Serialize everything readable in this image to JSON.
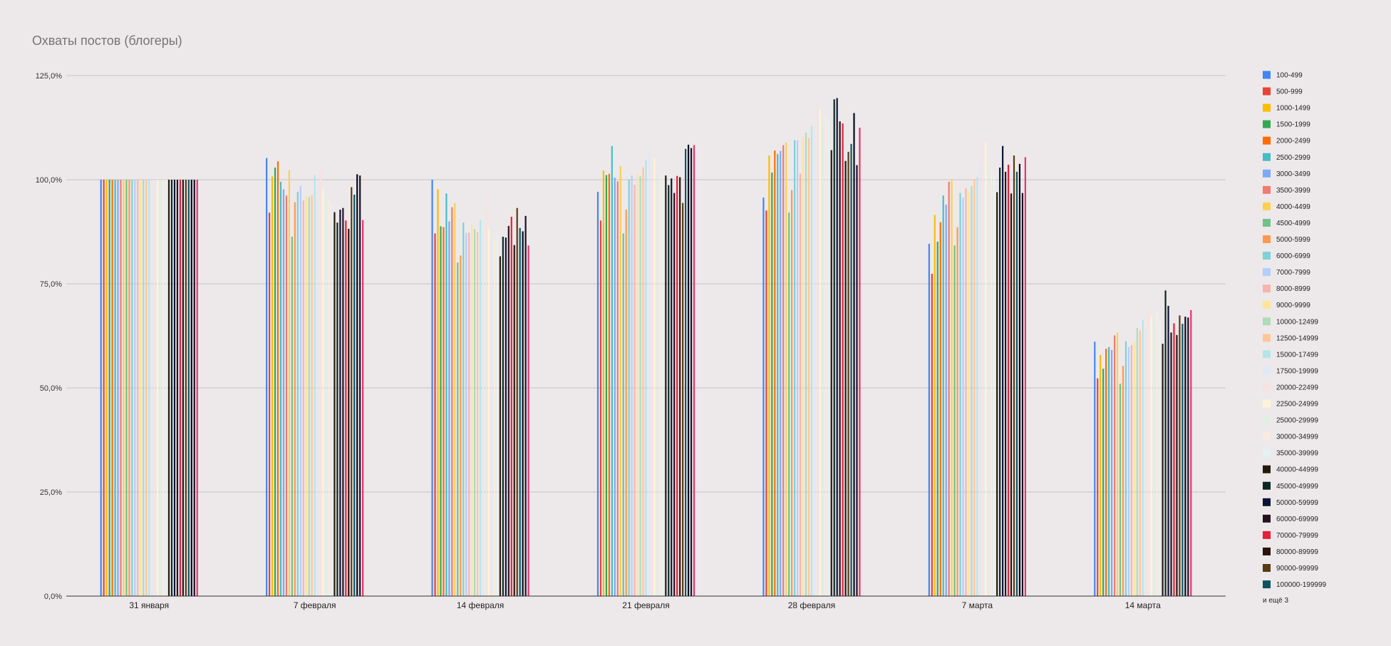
{
  "chart_data": {
    "type": "bar",
    "title": "Охваты постов (блогеры)",
    "xlabel": "",
    "ylabel": "",
    "ylim": [
      0,
      125
    ],
    "y_ticks": [
      "0,0%",
      "25,0%",
      "50,0%",
      "75,0%",
      "100,0%",
      "125,0%"
    ],
    "y_tick_values": [
      0,
      25,
      50,
      75,
      100,
      125
    ],
    "grid": true,
    "legend_position": "right",
    "legend_more": "и ещё 3",
    "categories": [
      "31 января",
      "7 февраля",
      "14 февраля",
      "21 февраля",
      "28 февраля",
      "7 марта",
      "14 марта"
    ],
    "series": [
      {
        "name": "100-499",
        "color": "#4285f4",
        "values": [
          100,
          105.2,
          100,
          97.1,
          95.7,
          84.6,
          61.1
        ]
      },
      {
        "name": "500-999",
        "color": "#ea4335",
        "values": [
          100,
          92.1,
          87.1,
          90.2,
          92.6,
          77.4,
          52.3
        ]
      },
      {
        "name": "1000-1499",
        "color": "#fbbc04",
        "values": [
          100,
          100.8,
          97.7,
          102.2,
          105.8,
          91.5,
          57.9
        ]
      },
      {
        "name": "1500-1999",
        "color": "#34a853",
        "values": [
          100,
          102.9,
          88.8,
          101.1,
          101.7,
          85.1,
          54.6
        ]
      },
      {
        "name": "2000-2499",
        "color": "#ff6d01",
        "values": [
          100,
          104.4,
          88.6,
          101.4,
          107.0,
          89.8,
          59.4
        ]
      },
      {
        "name": "2500-2999",
        "color": "#46bdc6",
        "values": [
          100,
          99.5,
          96.7,
          108.1,
          106.2,
          96.2,
          59.8
        ]
      },
      {
        "name": "3000-3499",
        "color": "#7baaf7",
        "values": [
          100,
          97.7,
          90.0,
          100.5,
          106.9,
          94.0,
          59.1
        ]
      },
      {
        "name": "3500-3999",
        "color": "#f07b72",
        "values": [
          100,
          96.2,
          93.4,
          99.6,
          108.3,
          99.5,
          62.6
        ]
      },
      {
        "name": "4000-4499",
        "color": "#fcd04f",
        "values": [
          100,
          102.3,
          94.4,
          103.3,
          108.9,
          100.0,
          63.3
        ]
      },
      {
        "name": "4500-4999",
        "color": "#71c287",
        "values": [
          100,
          86.3,
          80.1,
          87.1,
          92.1,
          84.2,
          51.0
        ]
      },
      {
        "name": "5000-5999",
        "color": "#ff994d",
        "values": [
          100,
          94.6,
          81.8,
          92.8,
          97.5,
          88.6,
          55.3
        ]
      },
      {
        "name": "6000-6999",
        "color": "#7ed1d7",
        "values": [
          100,
          97.1,
          89.7,
          100.0,
          109.5,
          96.8,
          61.2
        ]
      },
      {
        "name": "7000-7999",
        "color": "#b3cefb",
        "values": [
          100,
          98.5,
          87.2,
          101.0,
          109.4,
          95.7,
          59.8
        ]
      },
      {
        "name": "8000-8999",
        "color": "#f7b4ae",
        "values": [
          100,
          95.0,
          87.3,
          98.8,
          101.5,
          97.9,
          60.3
        ]
      },
      {
        "name": "9000-9999",
        "color": "#fde49b",
        "values": [
          100,
          96.1,
          89.2,
          101.5,
          110.2,
          96.9,
          61.0
        ]
      },
      {
        "name": "10000-12499",
        "color": "#aedcba",
        "values": [
          100,
          95.8,
          88.1,
          100.8,
          111.3,
          98.5,
          64.4
        ]
      },
      {
        "name": "12500-14999",
        "color": "#ffc599",
        "values": [
          100,
          96.3,
          87.5,
          103.0,
          110.0,
          100.2,
          63.8
        ]
      },
      {
        "name": "15000-17499",
        "color": "#b5e5e8",
        "values": [
          100,
          101.1,
          90.4,
          104.7,
          112.9,
          100.6,
          66.3
        ]
      },
      {
        "name": "17500-19999",
        "color": "#e1e8f5",
        "values": [
          100,
          98.9,
          87.7,
          106.6,
          112.4,
          104.3,
          64.5
        ]
      },
      {
        "name": "20000-22499",
        "color": "#f8e2e0",
        "values": [
          100,
          102.0,
          94.4,
          102.0,
          118.4,
          108.7,
          68.4
        ]
      },
      {
        "name": "22500-24999",
        "color": "#fdf4d7",
        "values": [
          100,
          97.9,
          88.2,
          105.2,
          116.8,
          109.1,
          67.2
        ]
      },
      {
        "name": "25000-29999",
        "color": "#dff0e3",
        "values": [
          100,
          96.4,
          87.4,
          101.2,
          114.2,
          103.2,
          66.3
        ]
      },
      {
        "name": "30000-34999",
        "color": "#fbeade",
        "values": [
          100,
          95.1,
          85.4,
          100.9,
          115.6,
          102.5,
          68.1
        ]
      },
      {
        "name": "35000-39999",
        "color": "#e3f3f3",
        "values": [
          100,
          93.9,
          87.0,
          101.4,
          114.6,
          101.5,
          66.6
        ]
      },
      {
        "name": "40000-44999",
        "color": "#241a0b",
        "values": [
          100,
          92.2,
          81.6,
          101.0,
          107.1,
          97.0,
          60.6
        ]
      },
      {
        "name": "45000-49999",
        "color": "#0c2622",
        "values": [
          100,
          89.7,
          86.3,
          98.7,
          119.3,
          102.9,
          73.4
        ]
      },
      {
        "name": "50000-59999",
        "color": "#0b1437",
        "values": [
          100,
          92.8,
          86.1,
          100.3,
          119.6,
          108.1,
          69.7
        ]
      },
      {
        "name": "60000-69999",
        "color": "#26121f",
        "values": [
          100,
          93.2,
          88.9,
          96.8,
          114.0,
          101.9,
          63.3
        ]
      },
      {
        "name": "70000-79999",
        "color": "#e51f3a",
        "values": [
          100,
          90.2,
          91.1,
          100.9,
          113.5,
          103.6,
          65.5
        ]
      },
      {
        "name": "80000-89999",
        "color": "#2a1410",
        "values": [
          100,
          88.2,
          84.3,
          100.6,
          104.5,
          96.7,
          62.7
        ]
      },
      {
        "name": "90000-99999",
        "color": "#5a3a12",
        "values": [
          100,
          98.2,
          93.2,
          94.4,
          106.7,
          105.8,
          67.4
        ]
      },
      {
        "name": "100000-199999",
        "color": "#0f5460",
        "values": [
          100,
          96.4,
          88.4,
          107.4,
          108.6,
          101.9,
          65.4
        ]
      },
      {
        "name": "",
        "color": "#05091f",
        "values": [
          100,
          101.3,
          87.6,
          108.4,
          116.0,
          103.8,
          67.1
        ]
      },
      {
        "name": "",
        "color": "#1a1028",
        "values": [
          100,
          101.0,
          91.3,
          107.6,
          103.5,
          96.8,
          66.9
        ]
      },
      {
        "name": "",
        "color": "#e8336d",
        "values": [
          100,
          90.3,
          84.2,
          108.3,
          112.5,
          105.4,
          68.7
        ]
      }
    ]
  }
}
